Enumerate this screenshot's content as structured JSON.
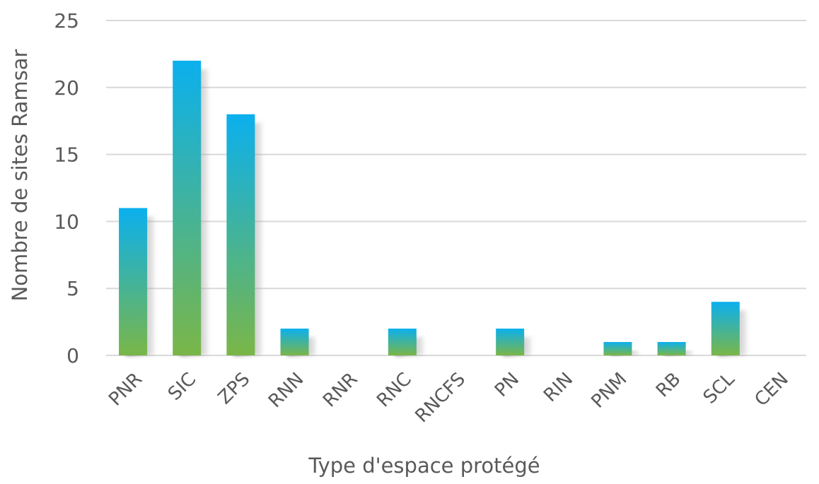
{
  "chart_data": {
    "type": "bar",
    "xlabel": "Type d'espace protégé",
    "ylabel": "Nombre de sites Ramsar",
    "categories": [
      "PNR",
      "SIC",
      "ZPS",
      "RNN",
      "RNR",
      "RNC",
      "RNCFS",
      "PN",
      "RIN",
      "PNM",
      "RB",
      "SCL",
      "CEN"
    ],
    "values": [
      11,
      22,
      18,
      2,
      0,
      2,
      0,
      2,
      0,
      1,
      1,
      4,
      0
    ],
    "ylim": [
      0,
      25
    ],
    "yticks": [
      "0",
      "5",
      "10",
      "15",
      "20",
      "25"
    ],
    "grid": true,
    "legend": "none",
    "colors": {
      "bar_top": "#0BB0EE",
      "bar_bottom": "#7AB648",
      "grid": "#D9D9D9",
      "text": "#595959",
      "shadow": "#6E6E6E"
    }
  }
}
